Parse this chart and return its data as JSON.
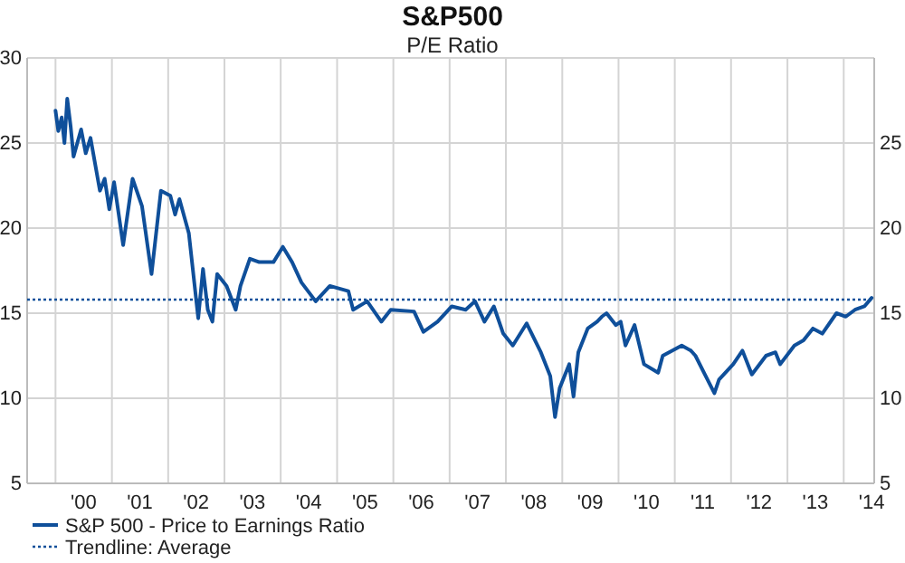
{
  "chart_data": {
    "type": "line",
    "title": "S&P500",
    "subtitle": "P/E Ratio",
    "x": [
      "2000-01-01",
      "2000-01-19",
      "2000-02-10",
      "2000-02-28",
      "2000-03-17",
      "2000-04-08",
      "2000-04-27",
      "2000-06-15",
      "2000-07-15",
      "2000-08-15",
      "2000-10-15",
      "2000-11-15",
      "2000-12-15",
      "2001-01-15",
      "2001-03-15",
      "2001-05-15",
      "2001-07-15",
      "2001-09-15",
      "2001-11-15",
      "2002-01-15",
      "2002-02-15",
      "2002-03-15",
      "2002-05-15",
      "2002-07-15",
      "2002-08-15",
      "2002-09-15",
      "2002-10-15",
      "2002-11-15",
      "2003-01-15",
      "2003-03-15",
      "2003-04-15",
      "2003-06-15",
      "2003-08-15",
      "2003-11-15",
      "2004-01-15",
      "2004-03-15",
      "2004-05-15",
      "2004-08-15",
      "2004-11-15",
      "2005-03-15",
      "2005-04-15",
      "2005-07-15",
      "2005-10-15",
      "2005-12-15",
      "2006-05-15",
      "2006-07-15",
      "2006-10-15",
      "2007-01-15",
      "2007-04-15",
      "2007-06-15",
      "2007-08-15",
      "2007-10-15",
      "2007-12-15",
      "2008-02-15",
      "2008-05-15",
      "2008-08-15",
      "2008-10-15",
      "2008-11-15",
      "2008-12-15",
      "2009-02-15",
      "2009-03-15",
      "2009-04-15",
      "2009-06-15",
      "2009-08-15",
      "2009-09-15",
      "2009-10-15",
      "2009-12-15",
      "2010-01-15",
      "2010-02-15",
      "2010-04-15",
      "2010-06-15",
      "2010-09-15",
      "2010-10-15",
      "2011-02-15",
      "2011-04-15",
      "2011-05-15",
      "2011-07-15",
      "2011-09-15",
      "2011-10-15",
      "2012-01-15",
      "2012-03-15",
      "2012-05-15",
      "2012-08-15",
      "2012-10-15",
      "2012-11-15",
      "2013-02-15",
      "2013-04-15",
      "2013-06-15",
      "2013-08-15",
      "2013-11-15",
      "2014-01-15",
      "2014-03-15",
      "2014-05-15",
      "2014-07-01"
    ],
    "series": [
      {
        "name": "S&P 500 - Price to Earnings Ratio",
        "color": "#0f4f9a",
        "line_style": "solid",
        "values": [
          26.9,
          25.7,
          26.5,
          25.0,
          27.6,
          26.0,
          24.2,
          25.8,
          24.4,
          25.3,
          22.2,
          22.9,
          21.1,
          22.7,
          19.0,
          22.9,
          21.3,
          17.3,
          22.2,
          21.9,
          20.8,
          21.7,
          19.7,
          14.7,
          17.6,
          15.2,
          14.5,
          17.3,
          16.6,
          15.2,
          16.6,
          18.2,
          18.0,
          18.0,
          18.9,
          18.0,
          16.8,
          15.7,
          16.6,
          16.3,
          15.2,
          15.7,
          14.5,
          15.2,
          15.1,
          13.9,
          14.5,
          15.4,
          15.2,
          15.7,
          14.5,
          15.4,
          13.8,
          13.1,
          14.4,
          12.7,
          11.3,
          8.9,
          10.6,
          12.0,
          10.1,
          12.7,
          14.1,
          14.5,
          14.8,
          15.0,
          14.3,
          14.5,
          13.1,
          14.3,
          12.0,
          11.5,
          12.5,
          13.1,
          12.8,
          12.5,
          11.4,
          10.3,
          11.1,
          12.0,
          12.8,
          11.4,
          12.5,
          12.7,
          12.0,
          13.1,
          13.4,
          14.1,
          13.8,
          15.0,
          14.8,
          15.2,
          15.4,
          15.9
        ]
      },
      {
        "name": "Trendline: Average",
        "color": "#0f4f9a",
        "line_style": "dotted",
        "x": [
          "1999-07-01",
          "2014-07-01"
        ],
        "values": [
          15.8,
          15.8
        ]
      }
    ],
    "xlim": [
      "1999-07-01",
      "2014-07-18"
    ],
    "xticks": [
      {
        "value": "2000-01-01",
        "label": null
      },
      {
        "value": "2000-07-01",
        "label": "'00"
      },
      {
        "value": "2001-01-01",
        "label": null
      },
      {
        "value": "2001-07-01",
        "label": "'01"
      },
      {
        "value": "2002-01-01",
        "label": null
      },
      {
        "value": "2002-07-01",
        "label": "'02"
      },
      {
        "value": "2003-01-01",
        "label": null
      },
      {
        "value": "2003-07-01",
        "label": "'03"
      },
      {
        "value": "2004-01-01",
        "label": null
      },
      {
        "value": "2004-07-01",
        "label": "'04"
      },
      {
        "value": "2005-01-01",
        "label": null
      },
      {
        "value": "2005-07-01",
        "label": "'05"
      },
      {
        "value": "2006-01-01",
        "label": null
      },
      {
        "value": "2006-07-01",
        "label": "'06"
      },
      {
        "value": "2007-01-01",
        "label": null
      },
      {
        "value": "2007-07-01",
        "label": "'07"
      },
      {
        "value": "2008-01-01",
        "label": null
      },
      {
        "value": "2008-07-01",
        "label": "'08"
      },
      {
        "value": "2009-01-01",
        "label": null
      },
      {
        "value": "2009-07-01",
        "label": "'09"
      },
      {
        "value": "2010-01-01",
        "label": null
      },
      {
        "value": "2010-07-01",
        "label": "'10"
      },
      {
        "value": "2011-01-01",
        "label": null
      },
      {
        "value": "2011-07-01",
        "label": "'11"
      },
      {
        "value": "2012-01-01",
        "label": null
      },
      {
        "value": "2012-07-01",
        "label": "'12"
      },
      {
        "value": "2013-01-01",
        "label": null
      },
      {
        "value": "2013-07-01",
        "label": "'13"
      },
      {
        "value": "2014-01-01",
        "label": null
      },
      {
        "value": "2014-07-01",
        "label": "'14"
      }
    ],
    "ylim": [
      5,
      30
    ],
    "yticks": [
      5,
      10,
      15,
      20,
      25,
      30
    ],
    "y2lim": [
      5,
      30
    ],
    "y2ticks": [
      5,
      10,
      15,
      20,
      25
    ],
    "grid": true,
    "legend": "bottom left",
    "marker": "none"
  }
}
